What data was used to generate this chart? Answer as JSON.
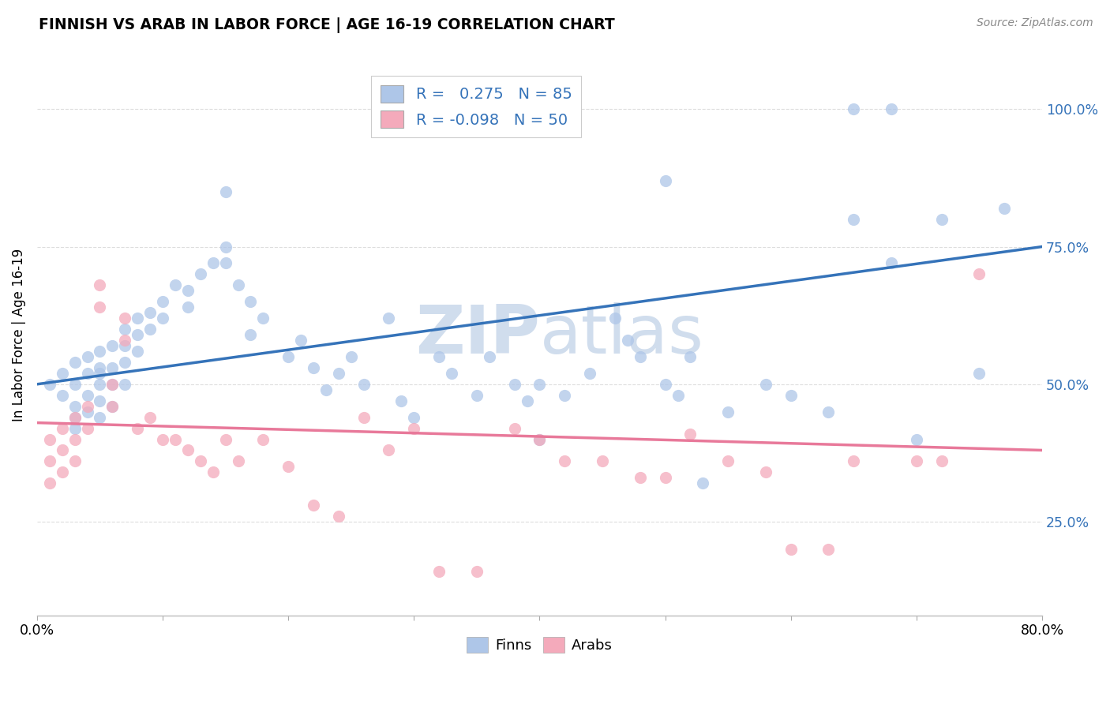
{
  "title": "FINNISH VS ARAB IN LABOR FORCE | AGE 16-19 CORRELATION CHART",
  "source": "Source: ZipAtlas.com",
  "ylabel": "In Labor Force | Age 16-19",
  "yticks": [
    0.25,
    0.5,
    0.75,
    1.0
  ],
  "ytick_labels": [
    "25.0%",
    "50.0%",
    "75.0%",
    "100.0%"
  ],
  "xlim": [
    0.0,
    0.8
  ],
  "ylim": [
    0.08,
    1.1
  ],
  "legend_finn_R": " 0.275",
  "legend_finn_N": "85",
  "legend_arab_R": "-0.098",
  "legend_arab_N": "50",
  "finn_color": "#AEC6E8",
  "arab_color": "#F4AABB",
  "finn_line_color": "#3573B9",
  "arab_line_color": "#E8799A",
  "legend_text_color": "#3573B9",
  "ytick_color": "#3573B9",
  "watermark_color": "#D0DDED",
  "grid_color": "#DDDDDD",
  "finns_x": [
    0.01,
    0.02,
    0.02,
    0.03,
    0.03,
    0.03,
    0.03,
    0.03,
    0.04,
    0.04,
    0.04,
    0.04,
    0.05,
    0.05,
    0.05,
    0.05,
    0.05,
    0.06,
    0.06,
    0.06,
    0.06,
    0.07,
    0.07,
    0.07,
    0.07,
    0.08,
    0.08,
    0.08,
    0.09,
    0.09,
    0.1,
    0.1,
    0.11,
    0.12,
    0.12,
    0.13,
    0.14,
    0.15,
    0.15,
    0.16,
    0.17,
    0.17,
    0.18,
    0.2,
    0.21,
    0.22,
    0.23,
    0.24,
    0.25,
    0.26,
    0.28,
    0.29,
    0.3,
    0.32,
    0.33,
    0.35,
    0.36,
    0.38,
    0.39,
    0.4,
    0.42,
    0.44,
    0.46,
    0.47,
    0.48,
    0.5,
    0.51,
    0.52,
    0.53,
    0.55,
    0.58,
    0.6,
    0.63,
    0.65,
    0.68,
    0.7,
    0.72,
    0.75,
    0.77,
    0.65,
    0.68,
    0.4,
    0.15,
    0.05,
    0.5
  ],
  "finns_y": [
    0.5,
    0.52,
    0.48,
    0.54,
    0.5,
    0.46,
    0.44,
    0.42,
    0.55,
    0.52,
    0.48,
    0.45,
    0.56,
    0.53,
    0.5,
    0.47,
    0.44,
    0.57,
    0.53,
    0.5,
    0.46,
    0.6,
    0.57,
    0.54,
    0.5,
    0.62,
    0.59,
    0.56,
    0.63,
    0.6,
    0.65,
    0.62,
    0.68,
    0.67,
    0.64,
    0.7,
    0.72,
    0.75,
    0.72,
    0.68,
    0.65,
    0.59,
    0.62,
    0.55,
    0.58,
    0.53,
    0.49,
    0.52,
    0.55,
    0.5,
    0.62,
    0.47,
    0.44,
    0.55,
    0.52,
    0.48,
    0.55,
    0.5,
    0.47,
    0.5,
    0.48,
    0.52,
    0.62,
    0.58,
    0.55,
    0.5,
    0.48,
    0.55,
    0.32,
    0.45,
    0.5,
    0.48,
    0.45,
    1.0,
    1.0,
    0.4,
    0.8,
    0.52,
    0.82,
    0.8,
    0.72,
    0.4,
    0.85,
    0.52,
    0.87
  ],
  "arabs_x": [
    0.01,
    0.01,
    0.01,
    0.02,
    0.02,
    0.02,
    0.03,
    0.03,
    0.03,
    0.04,
    0.04,
    0.05,
    0.05,
    0.06,
    0.06,
    0.07,
    0.07,
    0.08,
    0.09,
    0.1,
    0.11,
    0.12,
    0.13,
    0.14,
    0.15,
    0.16,
    0.18,
    0.2,
    0.22,
    0.24,
    0.26,
    0.28,
    0.3,
    0.32,
    0.35,
    0.38,
    0.4,
    0.42,
    0.45,
    0.48,
    0.5,
    0.52,
    0.55,
    0.58,
    0.6,
    0.63,
    0.65,
    0.7,
    0.72,
    0.75
  ],
  "arabs_y": [
    0.4,
    0.36,
    0.32,
    0.42,
    0.38,
    0.34,
    0.44,
    0.4,
    0.36,
    0.46,
    0.42,
    0.68,
    0.64,
    0.5,
    0.46,
    0.62,
    0.58,
    0.42,
    0.44,
    0.4,
    0.4,
    0.38,
    0.36,
    0.34,
    0.4,
    0.36,
    0.4,
    0.35,
    0.28,
    0.26,
    0.44,
    0.38,
    0.42,
    0.16,
    0.16,
    0.42,
    0.4,
    0.36,
    0.36,
    0.33,
    0.33,
    0.41,
    0.36,
    0.34,
    0.2,
    0.2,
    0.36,
    0.36,
    0.36,
    0.7
  ]
}
